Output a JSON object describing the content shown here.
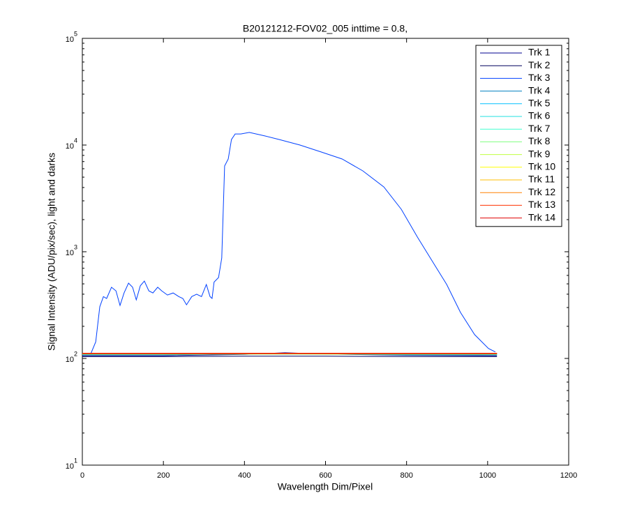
{
  "chart_data": {
    "type": "line",
    "title": "B20121212-FOV02_005 inttime = 0.8,",
    "x_label": "Wavelength Dim/Pixel",
    "y_label": "Signal Intensity (ADU/pix/sec), light and darks",
    "log_y": true,
    "grid": false,
    "legend": "upper right",
    "xlim": [
      0,
      1200
    ],
    "xticks": [
      0,
      200,
      400,
      600,
      800,
      1000,
      1200
    ],
    "ylim": [
      10,
      100000
    ],
    "yticks": [
      {
        "value": 10,
        "label": "10",
        "exponent": "1"
      },
      {
        "value": 100,
        "label": "10",
        "exponent": "2"
      },
      {
        "value": 1000,
        "label": "10",
        "exponent": "3"
      },
      {
        "value": 10000,
        "label": "10",
        "exponent": "4"
      },
      {
        "value": 100000,
        "label": "10",
        "exponent": "5"
      }
    ],
    "series": [
      {
        "name": "Trk 1",
        "color": "#00008f",
        "x": [
          0,
          200,
          400,
          500,
          600,
          800,
          1023
        ],
        "values": [
          106,
          106,
          109,
          113,
          110,
          107,
          106
        ]
      },
      {
        "name": "Trk 2",
        "color": "#00005f",
        "x": [
          0,
          200,
          400,
          600,
          800,
          1023
        ],
        "values": [
          104,
          104,
          105,
          105,
          104,
          104
        ]
      },
      {
        "name": "Trk 3",
        "color": "#0040ff",
        "x": [
          3,
          21,
          33,
          43,
          52,
          60,
          72,
          83,
          93,
          103,
          114,
          124,
          133,
          143,
          153,
          164,
          174,
          186,
          196,
          210,
          224,
          238,
          248,
          257,
          270,
          282,
          294,
          306,
          315,
          320,
          325,
          336,
          344,
          351,
          360,
          368,
          377,
          391,
          412,
          451,
          486,
          537,
          589,
          641,
          692,
          744,
          787,
          827,
          864,
          899,
          933,
          968,
          1002,
          1019
        ],
        "values": [
          111,
          111,
          143,
          305,
          380,
          365,
          465,
          430,
          314,
          411,
          508,
          465,
          354,
          480,
          531,
          430,
          411,
          465,
          430,
          393,
          411,
          380,
          365,
          318,
          380,
          400,
          380,
          493,
          380,
          365,
          520,
          573,
          873,
          6370,
          7400,
          11270,
          12700,
          12700,
          13130,
          12170,
          11270,
          10000,
          8610,
          7400,
          5730,
          4050,
          2500,
          1370,
          810,
          493,
          270,
          167,
          124,
          115
        ]
      },
      {
        "name": "Trk 4",
        "color": "#0080c0",
        "x": [
          0,
          200,
          400,
          600,
          800,
          1023
        ],
        "values": [
          108,
          108,
          111,
          110,
          108,
          108
        ]
      },
      {
        "name": "Trk 5",
        "color": "#00c0ff",
        "x": [
          0,
          200,
          400,
          600,
          800,
          1023
        ],
        "values": [
          109,
          109,
          112,
          111,
          109,
          109
        ]
      },
      {
        "name": "Trk 6",
        "color": "#20e0e0",
        "x": [
          0,
          200,
          400,
          600,
          800,
          1023
        ],
        "values": [
          109,
          109,
          110,
          110,
          109,
          109
        ]
      },
      {
        "name": "Trk 7",
        "color": "#40ffd0",
        "x": [
          0,
          200,
          400,
          600,
          800,
          1023
        ],
        "values": [
          110,
          110,
          110,
          110,
          110,
          110
        ]
      },
      {
        "name": "Trk 8",
        "color": "#80ff80",
        "x": [
          0,
          200,
          400,
          600,
          800,
          1023
        ],
        "values": [
          110,
          110,
          111,
          110,
          110,
          110
        ]
      },
      {
        "name": "Trk 9",
        "color": "#c0ff40",
        "x": [
          0,
          200,
          400,
          600,
          800,
          1023
        ],
        "values": [
          110,
          110,
          110,
          110,
          110,
          110
        ]
      },
      {
        "name": "Trk 10",
        "color": "#ffff00",
        "x": [
          0,
          200,
          400,
          600,
          800,
          1023
        ],
        "values": [
          111,
          111,
          111,
          111,
          111,
          111
        ]
      },
      {
        "name": "Trk 11",
        "color": "#ffbf00",
        "x": [
          0,
          200,
          400,
          600,
          800,
          1023
        ],
        "values": [
          111,
          111,
          111,
          111,
          111,
          111
        ]
      },
      {
        "name": "Trk 12",
        "color": "#ff8000",
        "x": [
          0,
          200,
          400,
          600,
          800,
          1023
        ],
        "values": [
          112,
          112,
          112,
          112,
          112,
          112
        ]
      },
      {
        "name": "Trk 13",
        "color": "#ff3000",
        "x": [
          0,
          200,
          400,
          600,
          800,
          1023
        ],
        "values": [
          112,
          112,
          112,
          112,
          112,
          112
        ]
      },
      {
        "name": "Trk 14",
        "color": "#df0000",
        "x": [
          0,
          200,
          400,
          600,
          800,
          1023
        ],
        "values": [
          111,
          111,
          111,
          111,
          111,
          111
        ]
      }
    ]
  }
}
